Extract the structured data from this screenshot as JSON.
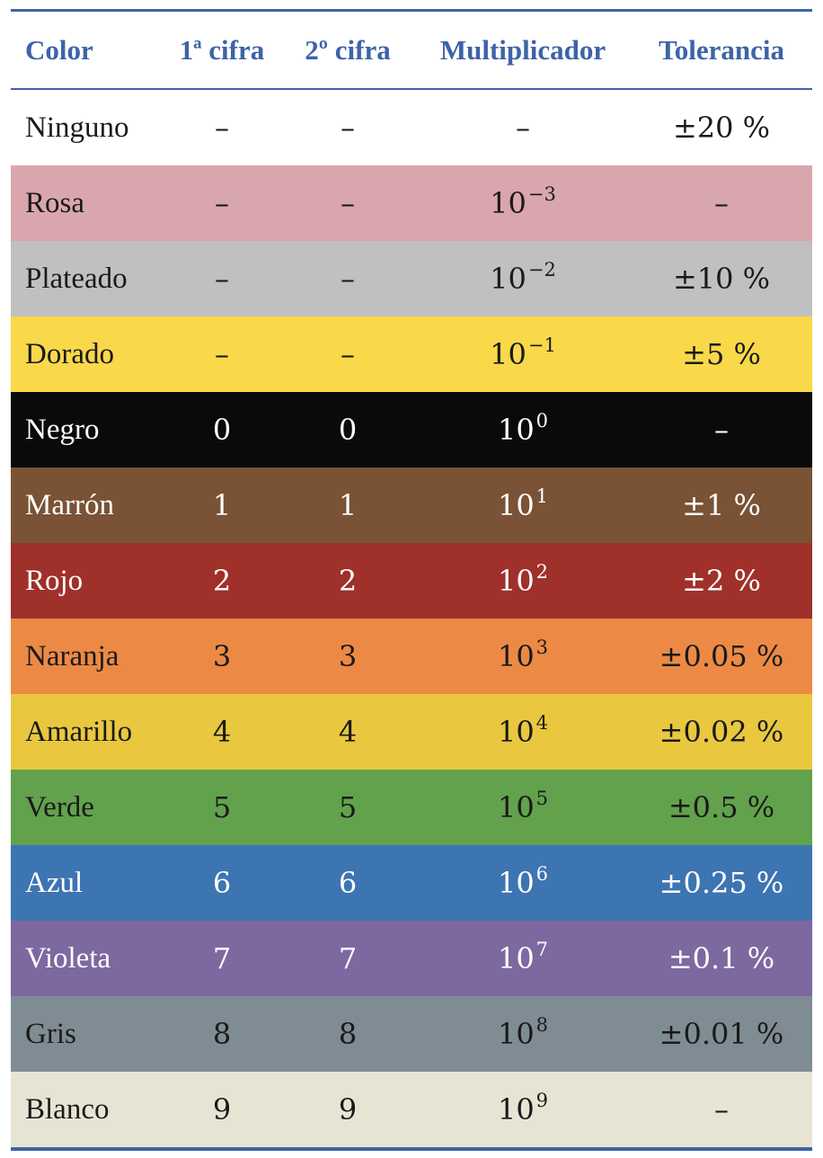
{
  "table": {
    "headers": {
      "color": "Color",
      "first_digit": "1ª cifra",
      "second_digit": "2º cifra",
      "multiplier": "Multiplicador",
      "tolerance": "Tolerancia"
    },
    "header_color": "#3d63a8",
    "rows": [
      {
        "name": "Ninguno",
        "d1": "–",
        "d2": "–",
        "mult_base": "",
        "mult_exp": "",
        "mult_dash": "–",
        "tol": "±20 %",
        "bg": "#ffffff",
        "tone": "light"
      },
      {
        "name": "Rosa",
        "d1": "–",
        "d2": "–",
        "mult_base": "10",
        "mult_exp": "−3",
        "mult_dash": "",
        "tol": "–",
        "bg": "#d9a6ae",
        "tone": "light"
      },
      {
        "name": "Plateado",
        "d1": "–",
        "d2": "–",
        "mult_base": "10",
        "mult_exp": "−2",
        "mult_dash": "",
        "tol": "±10 %",
        "bg": "#c0c0c0",
        "tone": "light"
      },
      {
        "name": "Dorado",
        "d1": "–",
        "d2": "–",
        "mult_base": "10",
        "mult_exp": "−1",
        "mult_dash": "",
        "tol": "±5 %",
        "bg": "#f9d84a",
        "tone": "light"
      },
      {
        "name": "Negro",
        "d1": "0",
        "d2": "0",
        "mult_base": "10",
        "mult_exp": "0",
        "mult_dash": "",
        "tol": "–",
        "bg": "#0a0a0a",
        "tone": "dark"
      },
      {
        "name": "Marrón",
        "d1": "1",
        "d2": "1",
        "mult_base": "10",
        "mult_exp": "1",
        "mult_dash": "",
        "tol": "±1 %",
        "bg": "#7a5235",
        "tone": "dark"
      },
      {
        "name": "Rojo",
        "d1": "2",
        "d2": "2",
        "mult_base": "10",
        "mult_exp": "2",
        "mult_dash": "",
        "tol": "±2 %",
        "bg": "#a0302a",
        "tone": "dark"
      },
      {
        "name": "Naranja",
        "d1": "3",
        "d2": "3",
        "mult_base": "10",
        "mult_exp": "3",
        "mult_dash": "",
        "tol": "±0.05 %",
        "bg": "#ec8a45",
        "tone": "light"
      },
      {
        "name": "Amarillo",
        "d1": "4",
        "d2": "4",
        "mult_base": "10",
        "mult_exp": "4",
        "mult_dash": "",
        "tol": "±0.02 %",
        "bg": "#e9c83f",
        "tone": "light"
      },
      {
        "name": "Verde",
        "d1": "5",
        "d2": "5",
        "mult_base": "10",
        "mult_exp": "5",
        "mult_dash": "",
        "tol": "±0.5 %",
        "bg": "#62a24d",
        "tone": "light"
      },
      {
        "name": "Azul",
        "d1": "6",
        "d2": "6",
        "mult_base": "10",
        "mult_exp": "6",
        "mult_dash": "",
        "tol": "±0.25 %",
        "bg": "#3d74b2",
        "tone": "dark"
      },
      {
        "name": "Violeta",
        "d1": "7",
        "d2": "7",
        "mult_base": "10",
        "mult_exp": "7",
        "mult_dash": "",
        "tol": "±0.1 %",
        "bg": "#7e68a0",
        "tone": "dark"
      },
      {
        "name": "Gris",
        "d1": "8",
        "d2": "8",
        "mult_base": "10",
        "mult_exp": "8",
        "mult_dash": "",
        "tol": "±0.01 %",
        "bg": "#808c94",
        "tone": "light"
      },
      {
        "name": "Blanco",
        "d1": "9",
        "d2": "9",
        "mult_base": "10",
        "mult_exp": "9",
        "mult_dash": "",
        "tol": "–",
        "bg": "#e8e4d4",
        "tone": "light"
      }
    ]
  }
}
